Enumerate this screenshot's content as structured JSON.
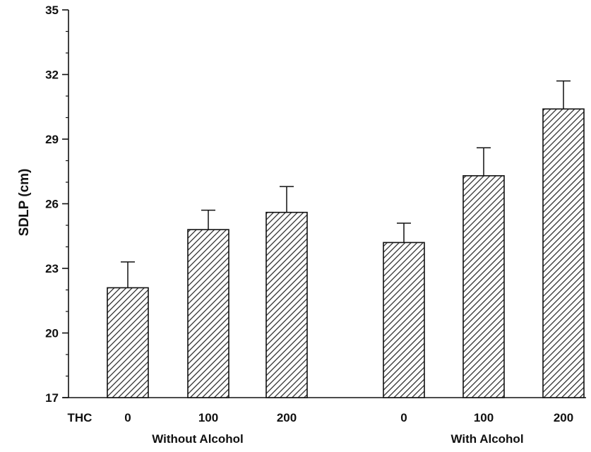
{
  "chart_data": {
    "type": "bar",
    "ylabel": "SDLP (cm)",
    "ylim": [
      17,
      35
    ],
    "yticks": [
      17,
      20,
      23,
      26,
      29,
      32,
      35
    ],
    "x_prefix": "THC",
    "groups": [
      {
        "label": "Without Alcohol",
        "categories": [
          "0",
          "100",
          "200"
        ],
        "values": [
          22.1,
          24.8,
          25.6
        ],
        "error_upper": [
          23.3,
          25.7,
          26.8
        ]
      },
      {
        "label": "With Alcohol",
        "categories": [
          "0",
          "100",
          "200"
        ],
        "values": [
          24.2,
          27.3,
          30.4
        ],
        "error_upper": [
          25.1,
          28.6,
          31.7
        ]
      }
    ],
    "bar_fill": "hatched",
    "grid": false,
    "legend": false
  },
  "colors": {
    "ink": "#111111",
    "background": "#ffffff"
  }
}
